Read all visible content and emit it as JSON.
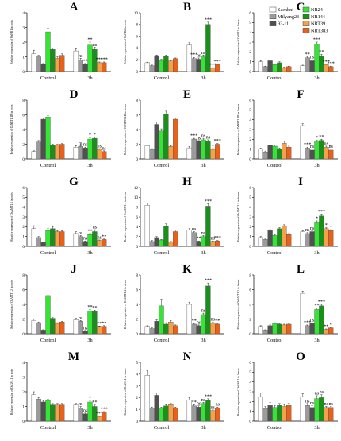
{
  "legend": [
    {
      "name": "Saenbni",
      "color": "#ffffff"
    },
    {
      "name": "Milyang23",
      "color": "#9b9b9b"
    },
    {
      "name": "93-11",
      "color": "#505050"
    },
    {
      "name": "NR24",
      "color": "#33e633"
    },
    {
      "name": "NR144",
      "color": "#1a8f1a"
    },
    {
      "name": "NRT39",
      "color": "#f5a04a"
    },
    {
      "name": "NRT383",
      "color": "#e8611a"
    }
  ],
  "chart_data": [
    {
      "type": "bar",
      "panel": "A",
      "ylabel": "Relative expression of OsNR1 in roots",
      "ylim": [
        0,
        4
      ],
      "yticks": [
        0,
        1,
        2,
        3,
        4
      ],
      "categories": [
        "Control",
        "3h"
      ],
      "values": [
        [
          1.2,
          1.0,
          0.5,
          2.7,
          1.5,
          0.9,
          1.1
        ],
        [
          1.4,
          0.8,
          0.5,
          1.8,
          1.5,
          0.6,
          0.6
        ]
      ],
      "errors": [
        [
          0.25,
          0.1,
          0.05,
          0.25,
          0.1,
          0.1,
          0.1
        ],
        [
          0.15,
          0.1,
          0.05,
          0.2,
          0.15,
          0.05,
          0.05
        ]
      ],
      "sig": [
        null,
        "ns",
        "**",
        "**",
        "ns",
        "***",
        "***"
      ]
    },
    {
      "type": "bar",
      "panel": "B",
      "ylabel": "Relative expression of OsNR2 in roots",
      "ylim": [
        0,
        10
      ],
      "yticks": [
        0,
        2,
        4,
        6,
        8,
        10
      ],
      "categories": [
        "Control",
        "3h"
      ],
      "values": [
        [
          1.5,
          1.0,
          2.7,
          1.9,
          2.6,
          1.8,
          2.2
        ],
        [
          4.5,
          2.2,
          2.1,
          2.5,
          8.0,
          0.6,
          1.2
        ]
      ],
      "errors": [
        [
          0.1,
          0.1,
          0.1,
          0.2,
          0.2,
          0.1,
          0.1
        ],
        [
          0.4,
          0.2,
          0.2,
          0.3,
          0.4,
          0.05,
          0.1
        ]
      ],
      "sig": [
        null,
        "***",
        "ns",
        "ns",
        "***",
        "***",
        "***"
      ]
    },
    {
      "type": "bar",
      "panel": "C",
      "ylabel": "Relative expression of OsNR2 in leaves",
      "ylim": [
        0,
        6
      ],
      "yticks": [
        0,
        1,
        2,
        3,
        4,
        5,
        6
      ],
      "categories": [
        "Control",
        "3h"
      ],
      "values": [
        [
          1.0,
          0.5,
          1.1,
          0.7,
          0.9,
          0.4,
          0.5
        ],
        [
          0.6,
          1.4,
          1.1,
          2.8,
          1.6,
          0.7,
          0.5
        ]
      ],
      "errors": [
        [
          0.1,
          0.05,
          0.1,
          0.05,
          0.1,
          0.05,
          0.05
        ],
        [
          0.05,
          0.1,
          0.1,
          0.2,
          0.15,
          0.05,
          0.05
        ]
      ],
      "sig": [
        null,
        "**",
        "ns",
        "***",
        "**",
        "***",
        "***"
      ]
    },
    {
      "type": "bar",
      "panel": "D",
      "ylabel": "Relative expression of OsNRT1.1B in roots",
      "ylim": [
        0,
        8
      ],
      "yticks": [
        0,
        2,
        4,
        6,
        8
      ],
      "categories": [
        "Control",
        "3h"
      ],
      "values": [
        [
          1.0,
          2.3,
          5.4,
          5.7,
          1.9,
          1.9,
          2.0
        ],
        [
          1.6,
          1.7,
          1.5,
          2.7,
          2.8,
          1.3,
          1.0
        ]
      ],
      "errors": [
        [
          0.1,
          0.2,
          0.2,
          0.2,
          0.1,
          0.1,
          0.1
        ],
        [
          0.2,
          0.1,
          0.1,
          0.2,
          0.2,
          0.1,
          0.1
        ]
      ],
      "sig": [
        null,
        "ns",
        "ns",
        "*",
        "*",
        "ns",
        "ns"
      ]
    },
    {
      "type": "bar",
      "panel": "E",
      "ylabel": "Relative expression of OsNRT1.1B in stems",
      "ylim": [
        0,
        8
      ],
      "yticks": [
        0,
        2,
        4,
        6,
        8
      ],
      "categories": [
        "Control",
        "3h"
      ],
      "values": [
        [
          1.8,
          1.3,
          4.7,
          3.8,
          6.1,
          1.7,
          5.4
        ],
        [
          1.5,
          2.7,
          2.4,
          2.6,
          2.4,
          1.3,
          2.0
        ]
      ],
      "errors": [
        [
          0.1,
          0.1,
          0.3,
          0.3,
          0.4,
          0.1,
          0.2
        ],
        [
          0.2,
          0.1,
          0.1,
          0.2,
          0.2,
          0.1,
          0.1
        ]
      ],
      "sig": [
        null,
        "***",
        "ns",
        "ns",
        "ns",
        "*",
        "***"
      ]
    },
    {
      "type": "bar",
      "panel": "F",
      "ylabel": "Relative expression of OsNRT1.1B in leaves",
      "ylim": [
        0,
        6
      ],
      "yticks": [
        0,
        1,
        2,
        3,
        4,
        5,
        6
      ],
      "categories": [
        "Control",
        "3h"
      ],
      "values": [
        [
          1.0,
          0.7,
          1.4,
          1.3,
          1.0,
          1.6,
          1.2
        ],
        [
          3.4,
          1.1,
          0.9,
          1.8,
          1.9,
          1.2,
          0.9
        ]
      ],
      "errors": [
        [
          0.1,
          0.1,
          0.4,
          0.1,
          0.1,
          0.2,
          0.1
        ],
        [
          0.2,
          0.1,
          0.1,
          0.1,
          0.1,
          0.1,
          0.1
        ]
      ],
      "sig": [
        null,
        "***",
        "ns",
        "*",
        "**",
        "ns",
        "ns"
      ]
    },
    {
      "type": "bar",
      "panel": "G",
      "ylabel": "Relative expression of OsAMT1.1 in roots",
      "ylim": [
        0,
        6
      ],
      "yticks": [
        0,
        1,
        2,
        3,
        4,
        5,
        6
      ],
      "categories": [
        "Control",
        "3h"
      ],
      "values": [
        [
          1.8,
          0.9,
          0.4,
          1.6,
          1.8,
          1.5,
          1.5
        ],
        [
          1.3,
          1.0,
          0.5,
          1.2,
          1.5,
          0.6,
          0.7
        ]
      ],
      "errors": [
        [
          0.3,
          0.1,
          0.05,
          0.2,
          0.2,
          0.1,
          0.1
        ],
        [
          0.2,
          0.1,
          0.05,
          0.1,
          0.2,
          0.05,
          0.05
        ]
      ],
      "sig": [
        null,
        "ns",
        "ns",
        "**",
        "ns",
        "ns",
        "**"
      ]
    },
    {
      "type": "bar",
      "panel": "H",
      "ylabel": "Relative expression of OsAMT1.1 in stems",
      "ylim": [
        0,
        12
      ],
      "yticks": [
        0,
        2,
        4,
        6,
        8,
        10,
        12
      ],
      "categories": [
        "Control",
        "3h"
      ],
      "values": [
        [
          8.4,
          1.0,
          1.8,
          1.3,
          4.1,
          0.9,
          3.0
        ],
        [
          3.3,
          2.8,
          1.0,
          2.0,
          8.2,
          1.0,
          1.1
        ]
      ],
      "errors": [
        [
          0.4,
          0.2,
          0.2,
          0.1,
          0.5,
          0.1,
          0.3
        ],
        [
          0.3,
          0.2,
          0.1,
          0.2,
          0.5,
          0.1,
          0.1
        ]
      ],
      "sig": [
        null,
        "ns",
        "**",
        "ns",
        "***",
        "ns",
        "***"
      ]
    },
    {
      "type": "bar",
      "panel": "I",
      "ylabel": "Relative expression of OsAMT1.1 in leaves",
      "ylim": [
        0,
        6
      ],
      "yticks": [
        0,
        1,
        2,
        3,
        4,
        5,
        6
      ],
      "categories": [
        "Control",
        "3h"
      ],
      "values": [
        [
          0.9,
          0.7,
          1.6,
          1.1,
          1.8,
          2.1,
          1.2
        ],
        [
          1.5,
          1.3,
          1.5,
          2.4,
          3.1,
          1.8,
          1.6
        ]
      ],
      "errors": [
        [
          0.1,
          0.05,
          0.1,
          0.1,
          0.1,
          0.1,
          0.1
        ],
        [
          0.1,
          0.1,
          0.1,
          0.2,
          0.2,
          0.1,
          0.1
        ]
      ],
      "sig": [
        null,
        "ns",
        "ns",
        "*",
        "***",
        "*",
        "*"
      ]
    },
    {
      "type": "bar",
      "panel": "J",
      "ylabel": "Relative expression of OsAMT1.2 in roots",
      "ylim": [
        0,
        8
      ],
      "yticks": [
        0,
        2,
        4,
        6,
        8
      ],
      "categories": [
        "Control",
        "3h"
      ],
      "values": [
        [
          1.8,
          1.5,
          0.5,
          5.2,
          2.1,
          1.4,
          1.6
        ],
        [
          1.9,
          1.7,
          0.4,
          3.1,
          3.0,
          1.0,
          1.0
        ]
      ],
      "errors": [
        [
          0.2,
          0.1,
          0.05,
          0.5,
          0.1,
          0.1,
          0.1
        ],
        [
          0.2,
          0.1,
          0.05,
          0.2,
          0.2,
          0.05,
          0.1
        ]
      ],
      "sig": [
        null,
        "ns",
        "ns",
        "**",
        "**",
        "**",
        "**"
      ]
    },
    {
      "type": "bar",
      "panel": "K",
      "ylabel": "Relative expression of OsAMT1.2 in stems",
      "ylim": [
        0,
        8
      ],
      "yticks": [
        0,
        2,
        4,
        6,
        8
      ],
      "categories": [
        "Control",
        "3h"
      ],
      "values": [
        [
          1.0,
          0.7,
          1.7,
          3.8,
          1.3,
          1.6,
          1.1
        ],
        [
          4.0,
          1.3,
          1.1,
          2.6,
          6.5,
          1.5,
          1.3
        ]
      ],
      "errors": [
        [
          0.1,
          0.1,
          0.2,
          0.9,
          0.2,
          0.2,
          0.1
        ],
        [
          0.3,
          0.1,
          0.1,
          0.2,
          0.4,
          0.1,
          0.1
        ]
      ],
      "sig": [
        null,
        "**",
        "ns",
        "ns",
        "***",
        "ns",
        "**"
      ]
    },
    {
      "type": "bar",
      "panel": "L",
      "ylabel": "Relative expression of OsAMT1.2 in leaves",
      "ylim": [
        0,
        8
      ],
      "yticks": [
        0,
        2,
        4,
        6,
        8
      ],
      "categories": [
        "Control",
        "3h"
      ],
      "values": [
        [
          1.0,
          0.5,
          1.1,
          1.4,
          1.3,
          1.2,
          1.3
        ],
        [
          5.5,
          1.1,
          1.4,
          3.3,
          3.8,
          0.6,
          0.8
        ]
      ],
      "errors": [
        [
          0.1,
          0.05,
          0.1,
          0.1,
          0.1,
          0.1,
          0.1
        ],
        [
          0.3,
          0.1,
          0.1,
          0.2,
          0.2,
          0.05,
          0.05
        ]
      ],
      "sig": [
        null,
        "***",
        "ns",
        "**",
        "***",
        "**",
        "*"
      ]
    },
    {
      "type": "bar",
      "panel": "M",
      "ylabel": "Relative expression of OsGS1.1 in roots",
      "ylim": [
        0,
        4
      ],
      "yticks": [
        0,
        1,
        2,
        3,
        4
      ],
      "categories": [
        "Control",
        "3h"
      ],
      "values": [
        [
          1.8,
          1.5,
          1.3,
          1.4,
          1.1,
          1.1,
          1.1
        ],
        [
          1.1,
          0.9,
          0.5,
          1.3,
          1.0,
          0.3,
          0.6
        ]
      ],
      "errors": [
        [
          0.2,
          0.1,
          0.1,
          0.1,
          0.1,
          0.1,
          0.1
        ],
        [
          0.1,
          0.1,
          0.05,
          0.1,
          0.1,
          0.05,
          0.05
        ]
      ],
      "sig": [
        null,
        "ns",
        "ns",
        "*",
        "**",
        "***",
        "***"
      ]
    },
    {
      "type": "bar",
      "panel": "N",
      "ylabel": "Relative expression of OsGS1.1 in stems",
      "ylim": [
        0,
        5
      ],
      "yticks": [
        0,
        1,
        2,
        3,
        4,
        5
      ],
      "categories": [
        "Control",
        "3h"
      ],
      "values": [
        [
          3.9,
          1.1,
          2.2,
          1.1,
          1.3,
          1.4,
          1.1
        ],
        [
          1.8,
          1.3,
          1.2,
          1.5,
          1.8,
          0.9,
          1.1
        ]
      ],
      "errors": [
        [
          0.4,
          0.1,
          0.2,
          0.1,
          0.1,
          0.1,
          0.1
        ],
        [
          0.2,
          0.1,
          0.1,
          0.1,
          0.1,
          0.05,
          0.1
        ]
      ],
      "sig": [
        null,
        "**",
        "ns",
        "ns",
        "***",
        "ns",
        "ns"
      ]
    },
    {
      "type": "bar",
      "panel": "O",
      "ylabel": "Relative expression of OsGS1.1 in leaves",
      "ylim": [
        0,
        6
      ],
      "yticks": [
        0,
        1,
        2,
        3,
        4,
        5,
        6
      ],
      "categories": [
        "Control",
        "3h"
      ],
      "values": [
        [
          2.5,
          1.3,
          1.6,
          1.4,
          1.6,
          1.5,
          1.6
        ],
        [
          2.5,
          1.6,
          1.4,
          2.3,
          2.4,
          1.4,
          1.4
        ]
      ],
      "errors": [
        [
          0.4,
          0.2,
          0.3,
          0.2,
          0.2,
          0.2,
          0.2
        ],
        [
          0.3,
          0.2,
          0.2,
          0.3,
          0.3,
          0.1,
          0.1
        ]
      ],
      "sig": [
        null,
        "ns",
        "ns",
        "ns",
        "ns",
        "ns",
        "ns"
      ]
    }
  ]
}
